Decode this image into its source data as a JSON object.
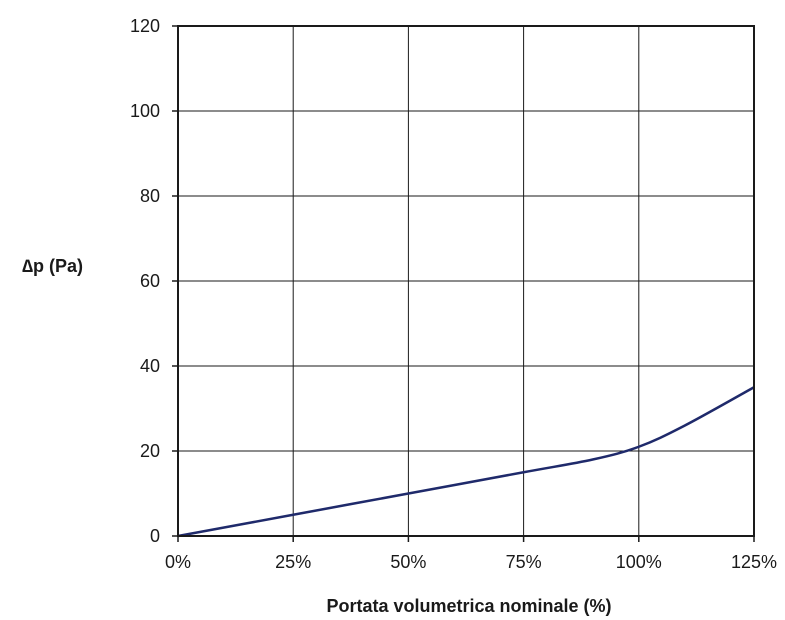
{
  "chart_data": {
    "type": "line",
    "title": "",
    "xlabel": "Portata volumetrica nominale (%)",
    "ylabel": "∆p (Pa)",
    "xlim": [
      0,
      125
    ],
    "ylim": [
      0,
      120
    ],
    "x_ticks": [
      0,
      25,
      50,
      75,
      100,
      125
    ],
    "x_tick_labels": [
      "0%",
      "25%",
      "50%",
      "75%",
      "100%",
      "125%"
    ],
    "y_ticks": [
      0,
      20,
      40,
      60,
      80,
      100,
      120
    ],
    "y_tick_labels": [
      "0",
      "20",
      "40",
      "60",
      "80",
      "100",
      "120"
    ],
    "grid": true,
    "legend": "none",
    "series": [
      {
        "color": "#1f2a6b",
        "x": [
          0,
          25,
          50,
          75,
          90,
          100,
          110,
          125
        ],
        "y": [
          0,
          5,
          10,
          15,
          18,
          21,
          26,
          35
        ]
      }
    ]
  }
}
